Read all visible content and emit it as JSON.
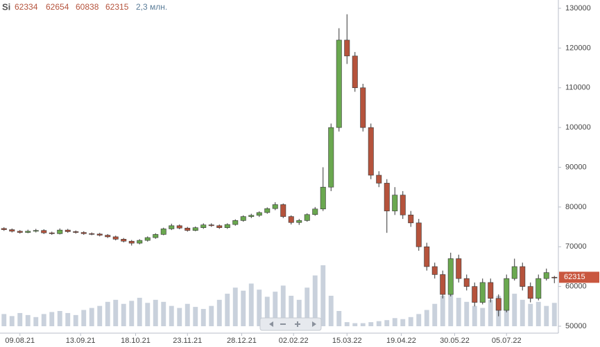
{
  "chart_data": {
    "type": "candlestick",
    "symbol": "Si",
    "up_color": "#6aa84f",
    "down_color": "#b5533c",
    "volume_color": "#c9d1dc",
    "volume_label": "2,3 млн.",
    "ylim": [
      50000,
      130000
    ],
    "yticks": [
      50000,
      60000,
      70000,
      80000,
      90000,
      100000,
      110000,
      120000,
      130000
    ],
    "xlim": [
      -0.5,
      69.5
    ],
    "xticks": [
      {
        "value": 2,
        "label": "09.08.21"
      },
      {
        "value": 9.6,
        "label": "13.09.21"
      },
      {
        "value": 16.5,
        "label": "18.10.21"
      },
      {
        "value": 23,
        "label": "23.11.21"
      },
      {
        "value": 29.8,
        "label": "28.12.21"
      },
      {
        "value": 36.3,
        "label": "02.02.22"
      },
      {
        "value": 43,
        "label": "15.03.22"
      },
      {
        "value": 49.8,
        "label": "19.04.22"
      },
      {
        "value": 56.5,
        "label": "30.05.22"
      },
      {
        "value": 63,
        "label": "05.07.22"
      }
    ],
    "grid": false,
    "candles": [
      [
        74600,
        74900,
        74000,
        74300
      ],
      [
        74300,
        74600,
        73600,
        73900
      ],
      [
        73900,
        74200,
        73300,
        73600
      ],
      [
        73600,
        74300,
        73400,
        73900
      ],
      [
        73900,
        74500,
        73600,
        74100
      ],
      [
        74100,
        74400,
        73200,
        73500
      ],
      [
        73500,
        73800,
        73000,
        73300
      ],
      [
        73300,
        74600,
        73100,
        74200
      ],
      [
        74200,
        74500,
        73500,
        73800
      ],
      [
        73800,
        74100,
        73300,
        73600
      ],
      [
        73600,
        73900,
        73000,
        73300
      ],
      [
        73300,
        73600,
        72900,
        73200
      ],
      [
        73200,
        73500,
        72600,
        72900
      ],
      [
        72900,
        73200,
        72200,
        72500
      ],
      [
        72500,
        72800,
        71600,
        71900
      ],
      [
        71900,
        72200,
        71100,
        71400
      ],
      [
        71400,
        71700,
        70300,
        70900
      ],
      [
        70900,
        71900,
        70600,
        71600
      ],
      [
        71600,
        72600,
        71300,
        72300
      ],
      [
        72300,
        73400,
        72000,
        73100
      ],
      [
        73100,
        74800,
        72900,
        74500
      ],
      [
        74500,
        75800,
        74200,
        75300
      ],
      [
        75300,
        75600,
        74400,
        74700
      ],
      [
        74700,
        75000,
        73800,
        74100
      ],
      [
        74100,
        75100,
        73900,
        74800
      ],
      [
        74800,
        75900,
        74500,
        75500
      ],
      [
        75500,
        75900,
        75000,
        75300
      ],
      [
        75300,
        75600,
        74500,
        74800
      ],
      [
        74800,
        75900,
        74500,
        75600
      ],
      [
        75600,
        76900,
        75300,
        76600
      ],
      [
        76600,
        77900,
        76300,
        77600
      ],
      [
        77600,
        78300,
        77200,
        77900
      ],
      [
        77900,
        78900,
        77500,
        78600
      ],
      [
        78600,
        79900,
        78300,
        79600
      ],
      [
        79600,
        81200,
        79200,
        80600
      ],
      [
        80600,
        80900,
        77200,
        77600
      ],
      [
        77600,
        77900,
        75600,
        76100
      ],
      [
        76100,
        77000,
        75500,
        76600
      ],
      [
        76600,
        78400,
        76300,
        78100
      ],
      [
        78100,
        80000,
        77800,
        79500
      ],
      [
        79500,
        90000,
        79000,
        85000
      ],
      [
        85000,
        101000,
        84000,
        100000
      ],
      [
        100000,
        125000,
        99000,
        122000
      ],
      [
        122000,
        128500,
        116000,
        118000
      ],
      [
        118000,
        119000,
        109000,
        110000
      ],
      [
        110000,
        111000,
        99000,
        100000
      ],
      [
        100000,
        101000,
        87000,
        88000
      ],
      [
        88000,
        89000,
        85000,
        86000
      ],
      [
        86000,
        87000,
        73500,
        79000
      ],
      [
        79000,
        85000,
        78000,
        83000
      ],
      [
        83000,
        84000,
        77000,
        78000
      ],
      [
        78000,
        79000,
        75000,
        76000
      ],
      [
        76000,
        77000,
        69000,
        70000
      ],
      [
        70000,
        71000,
        64000,
        65000
      ],
      [
        65000,
        66000,
        62000,
        63000
      ],
      [
        63000,
        64000,
        57000,
        58000
      ],
      [
        58000,
        68500,
        57500,
        67000
      ],
      [
        67000,
        68000,
        61000,
        62000
      ],
      [
        62000,
        63000,
        59000,
        60000
      ],
      [
        60000,
        61000,
        55000,
        56000
      ],
      [
        56000,
        62000,
        55500,
        61000
      ],
      [
        61000,
        62000,
        56000,
        57000
      ],
      [
        57000,
        58000,
        52500,
        54000
      ],
      [
        54000,
        63000,
        53500,
        62000
      ],
      [
        62000,
        67000,
        61500,
        65000
      ],
      [
        65000,
        66000,
        59000,
        60000
      ],
      [
        60000,
        61000,
        56000,
        57000
      ],
      [
        57000,
        63000,
        56500,
        62000
      ],
      [
        62000,
        64500,
        61500,
        63500
      ],
      [
        62334,
        62654,
        60838,
        62315
      ]
    ],
    "volumes": [
      1.2,
      1.0,
      1.3,
      1.1,
      0.9,
      1.2,
      1.4,
      1.5,
      1.3,
      1.1,
      1.6,
      1.8,
      2.0,
      2.4,
      2.6,
      2.2,
      2.5,
      2.8,
      2.3,
      2.6,
      2.4,
      2.0,
      1.8,
      2.2,
      1.9,
      1.7,
      2.0,
      2.6,
      3.2,
      3.8,
      3.5,
      4.2,
      3.6,
      2.9,
      3.4,
      4.0,
      3.0,
      2.6,
      3.8,
      5.0,
      6.0,
      3.0,
      1.5,
      0.4,
      0.3,
      0.3,
      0.4,
      0.5,
      0.6,
      0.8,
      0.7,
      0.9,
      1.2,
      1.6,
      2.2,
      3.0,
      3.5,
      2.8,
      2.4,
      2.0,
      1.8,
      2.6,
      3.0,
      2.8,
      3.2,
      2.6,
      2.2,
      2.4,
      2.0,
      2.3
    ]
  }
}
